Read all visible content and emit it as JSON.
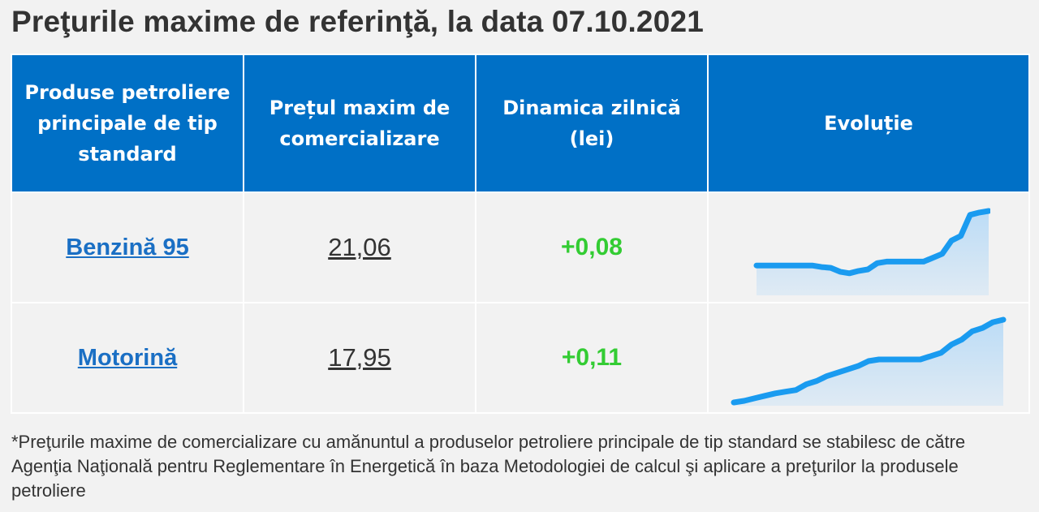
{
  "title": "Preţurile maxime de referinţă, la data 07.10.2021",
  "table": {
    "headers": [
      "Produse petroliere principale de tip standard",
      "Prețul maxim de comercializare",
      "Dinamica zilnică (lei)",
      "Evoluție"
    ],
    "rows": [
      {
        "product": "Benzină 95",
        "price": "21,06",
        "delta": "+0,08",
        "trend": [
          0.3,
          0.3,
          0.3,
          0.3,
          0.3,
          0.3,
          0.3,
          0.28,
          0.27,
          0.22,
          0.2,
          0.23,
          0.25,
          0.33,
          0.35,
          0.35,
          0.35,
          0.35,
          0.35,
          0.4,
          0.45,
          0.62,
          0.68,
          0.95,
          0.98,
          1.0
        ]
      },
      {
        "product": "Motorină",
        "price": "17,95",
        "delta": "+0,11",
        "trend": [
          0.0,
          0.02,
          0.05,
          0.08,
          0.11,
          0.13,
          0.15,
          0.22,
          0.26,
          0.32,
          0.36,
          0.4,
          0.44,
          0.5,
          0.52,
          0.52,
          0.52,
          0.52,
          0.52,
          0.56,
          0.6,
          0.7,
          0.76,
          0.86,
          0.9,
          0.97,
          1.0
        ]
      }
    ]
  },
  "colors": {
    "header_bg": "#0070c6",
    "link": "#1a6fc4",
    "positive": "#33cc33",
    "spark_line": "#1a9bf0",
    "spark_fill": "#bcdcf6"
  },
  "footnote": "*Preţurile maxime de comercializare cu amănuntul a produselor petroliere principale de tip standard se stabilesc de către Agenţia Naţională pentru Reglementare în Energetică în baza Metodologiei de calcul şi aplicare a preţurilor la produsele petroliere"
}
